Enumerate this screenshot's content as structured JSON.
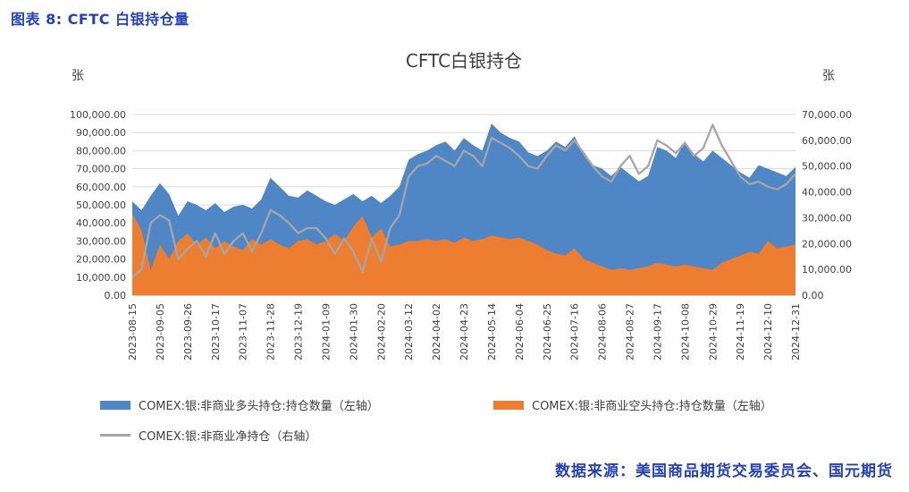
{
  "page": {
    "heading": "图表 8: CFTC 白银持仓量",
    "source": "数据来源：美国商品期货交易委员会、国元期货"
  },
  "colors": {
    "caption_blue": "#2441B5",
    "long_area": "#4E86C6",
    "short_area": "#ED7D31",
    "net_line": "#A6A6A6",
    "grid": "#D9D9D9"
  },
  "chart_data": {
    "type": "area",
    "title": "CFTC白银持仓",
    "grid": true,
    "legend_position": "bottom",
    "left_axis": {
      "label": "张",
      "min": 0,
      "max": 100000,
      "step": 10000
    },
    "right_axis": {
      "label": "张",
      "min": 0,
      "max": 70000,
      "step": 10000
    },
    "x_tick_interval": 3,
    "x": [
      "2023-08-15",
      "2023-08-22",
      "2023-08-29",
      "2023-09-05",
      "2023-09-12",
      "2023-09-19",
      "2023-09-26",
      "2023-10-03",
      "2023-10-10",
      "2023-10-17",
      "2023-10-24",
      "2023-10-31",
      "2023-11-07",
      "2023-11-14",
      "2023-11-21",
      "2023-11-28",
      "2023-12-05",
      "2023-12-12",
      "2023-12-19",
      "2023-12-26",
      "2024-01-02",
      "2024-01-09",
      "2024-01-16",
      "2024-01-23",
      "2024-01-30",
      "2024-02-06",
      "2024-02-13",
      "2024-02-20",
      "2024-02-27",
      "2024-03-05",
      "2024-03-12",
      "2024-03-19",
      "2024-03-26",
      "2024-04-02",
      "2024-04-09",
      "2024-04-16",
      "2024-04-23",
      "2024-04-30",
      "2024-05-07",
      "2024-05-14",
      "2024-05-21",
      "2024-05-28",
      "2024-06-04",
      "2024-06-11",
      "2024-06-18",
      "2024-06-25",
      "2024-07-02",
      "2024-07-09",
      "2024-07-16",
      "2024-07-23",
      "2024-07-30",
      "2024-08-06",
      "2024-08-13",
      "2024-08-20",
      "2024-08-27",
      "2024-09-03",
      "2024-09-10",
      "2024-09-17",
      "2024-09-24",
      "2024-10-01",
      "2024-10-08",
      "2024-10-15",
      "2024-10-22",
      "2024-10-29",
      "2024-11-05",
      "2024-11-12",
      "2024-11-19",
      "2024-11-26",
      "2024-12-03",
      "2024-12-10",
      "2024-12-17",
      "2024-12-24",
      "2024-12-31"
    ],
    "x_tick_labels": [
      "2023-08-15",
      "2023-09-05",
      "2023-09-26",
      "2023-10-17",
      "2023-11-07",
      "2023-11-28",
      "2023-12-19",
      "2024-01-09",
      "2024-01-30",
      "2024-02-20",
      "2024-03-12",
      "2024-04-02",
      "2024-04-23",
      "2024-05-14",
      "2024-06-04",
      "2024-06-25",
      "2024-07-16",
      "2024-08-06",
      "2024-08-27",
      "2024-09-17",
      "2024-10-08",
      "2024-10-29",
      "2024-11-19",
      "2024-12-10",
      "2024-12-31"
    ],
    "series": [
      {
        "name": "COMEX:银:非商业多头持仓:持仓数量（左轴）",
        "type": "area",
        "axis": "left",
        "color": "#4E86C6",
        "values": [
          52000,
          47000,
          55000,
          62000,
          56000,
          44000,
          52000,
          50000,
          47000,
          51000,
          46000,
          49000,
          50000,
          48000,
          53000,
          65000,
          60000,
          55000,
          54000,
          58000,
          55000,
          52000,
          50000,
          53000,
          56000,
          52000,
          55000,
          51000,
          55000,
          60000,
          75000,
          78000,
          80000,
          83000,
          85000,
          80000,
          87000,
          83000,
          80000,
          95000,
          90000,
          87000,
          85000,
          79000,
          77000,
          80000,
          85000,
          82000,
          88000,
          78000,
          72000,
          70000,
          66000,
          71000,
          67000,
          63000,
          66000,
          82000,
          80000,
          76000,
          85000,
          78000,
          74000,
          80000,
          76000,
          72000,
          68000,
          65000,
          72000,
          70000,
          68000,
          66000,
          71000
        ]
      },
      {
        "name": "COMEX:银:非商业空头持仓:持仓数量（左轴）",
        "type": "area",
        "axis": "left",
        "color": "#ED7D31",
        "values": [
          45000,
          36000,
          14000,
          28000,
          20000,
          30000,
          34000,
          28000,
          32000,
          26000,
          30000,
          27000,
          25000,
          31000,
          28000,
          31000,
          28000,
          26000,
          30000,
          31000,
          28000,
          30000,
          34000,
          30000,
          38000,
          44000,
          32000,
          37000,
          27000,
          28000,
          30000,
          30000,
          31000,
          30000,
          31000,
          29000,
          32000,
          30000,
          31000,
          33000,
          32000,
          31000,
          32000,
          30000,
          28000,
          25000,
          23000,
          22000,
          26000,
          20000,
          18000,
          16000,
          14000,
          15000,
          14000,
          15000,
          16000,
          18000,
          17000,
          16000,
          17000,
          16000,
          15000,
          14000,
          18000,
          20000,
          22000,
          24000,
          23000,
          30000,
          26000,
          27000,
          28000
        ]
      },
      {
        "name": "COMEX:银:非商业净持仓（右轴）",
        "type": "line",
        "axis": "right",
        "color": "#A6A6A6",
        "values": [
          7000,
          10000,
          28000,
          31000,
          29000,
          14000,
          18000,
          21000,
          15000,
          24000,
          16000,
          21000,
          24000,
          17000,
          24000,
          33000,
          31000,
          28000,
          24000,
          26000,
          26000,
          22000,
          16000,
          22000,
          17000,
          9000,
          22000,
          13000,
          26000,
          31000,
          46000,
          50000,
          51000,
          54000,
          52000,
          50000,
          56000,
          54000,
          50000,
          61000,
          59000,
          57000,
          54000,
          50000,
          49000,
          54000,
          58000,
          56000,
          60000,
          55000,
          50000,
          46000,
          44000,
          50000,
          54000,
          47000,
          50000,
          60000,
          58000,
          55000,
          59000,
          54000,
          57000,
          66000,
          58000,
          52000,
          46000,
          43000,
          44000,
          42000,
          41000,
          43000,
          47000
        ]
      }
    ]
  }
}
